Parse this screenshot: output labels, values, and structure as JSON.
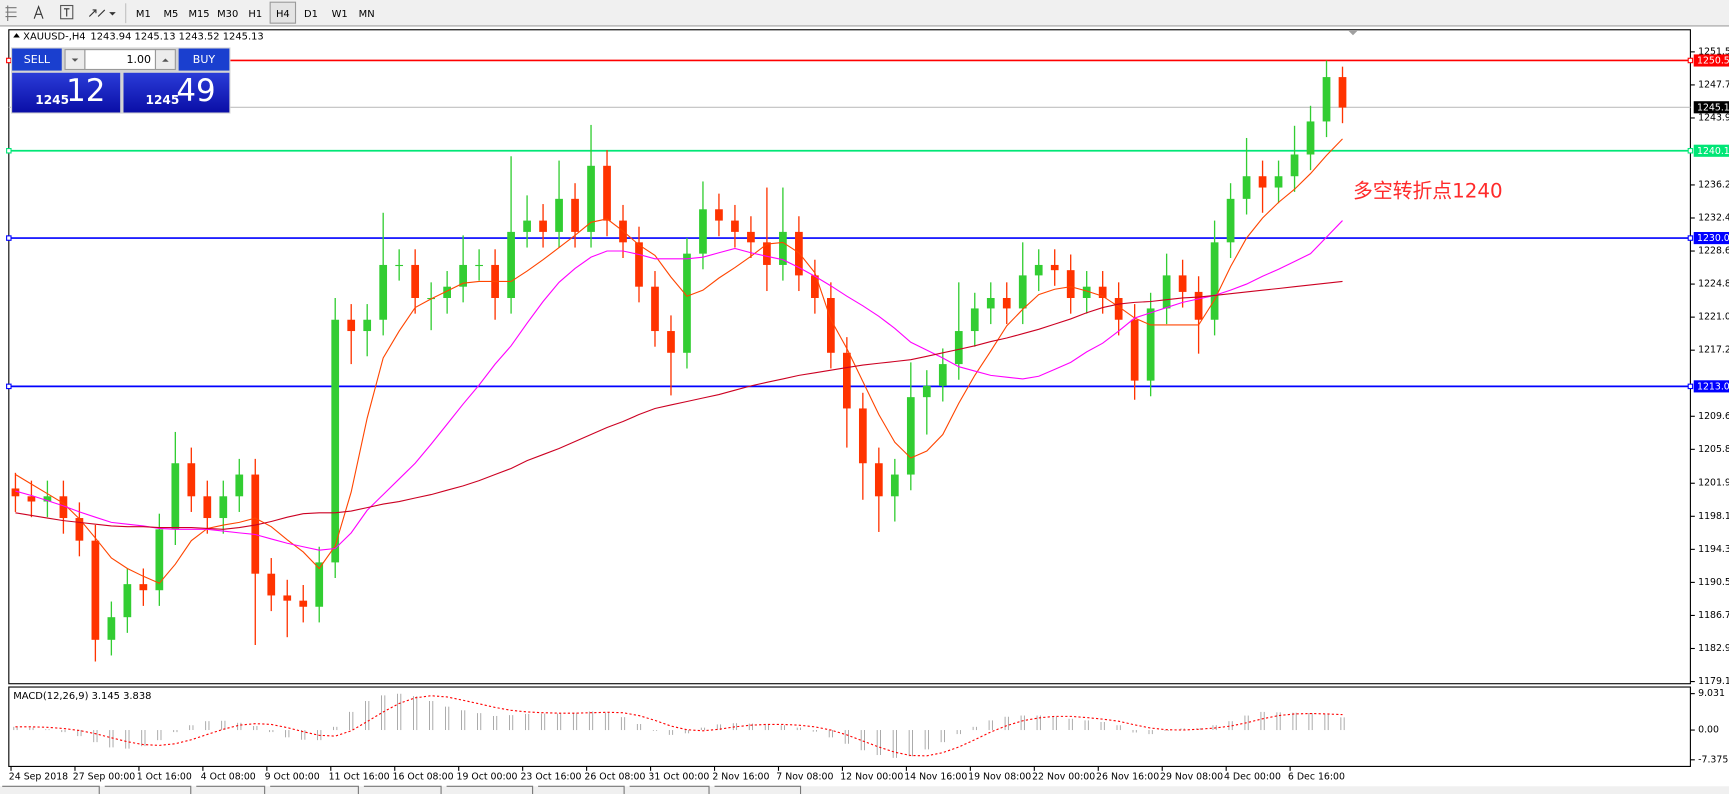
{
  "toolbar": {
    "timeframes": [
      "M1",
      "M5",
      "M15",
      "M30",
      "H1",
      "H4",
      "D1",
      "W1",
      "MN"
    ],
    "active": "H4"
  },
  "trade_panel": {
    "sell": "SELL",
    "buy": "BUY",
    "lots": "1.00",
    "bid_big": "1245",
    "bid_small": "12",
    "ask_big": "1245",
    "ask_small": "49"
  },
  "chart_data": {
    "type": "candlestick",
    "title": "XAUUSD-,H4",
    "subtitle": "1243.94 1245.13 1243.52 1245.13",
    "annotation": "多空转折点1240",
    "up_color": "#32cd32",
    "down_color": "#ff3300",
    "ylim": [
      1178.85,
      1254.04
    ],
    "yticks": [
      {
        "value": 1251.5,
        "label": "1251.50"
      },
      {
        "value": 1247.7,
        "label": "1247.70"
      },
      {
        "value": 1243.9,
        "label": "1243.90"
      },
      {
        "value": 1236.2,
        "label": "1236.20"
      },
      {
        "value": 1232.4,
        "label": "1232.40"
      },
      {
        "value": 1228.6,
        "label": "1228.60"
      },
      {
        "value": 1224.8,
        "label": "1224.80"
      },
      {
        "value": 1221.0,
        "label": "1221.00"
      },
      {
        "value": 1217.2,
        "label": "1217.20"
      },
      {
        "value": 1209.6,
        "label": "1209.60"
      },
      {
        "value": 1205.8,
        "label": "1205.80"
      },
      {
        "value": 1201.9,
        "label": "1201.90"
      },
      {
        "value": 1198.1,
        "label": "1198.10"
      },
      {
        "value": 1194.3,
        "label": "1194.30"
      },
      {
        "value": 1190.5,
        "label": "1190.50"
      },
      {
        "value": 1186.7,
        "label": "1186.70"
      },
      {
        "value": 1182.9,
        "label": "1182.90"
      },
      {
        "value": 1179.1,
        "label": "1179.10"
      }
    ],
    "hlines": [
      {
        "value": 1250.51,
        "color": "#ff0000"
      },
      {
        "value": 1245.13,
        "color": "#000000"
      },
      {
        "value": 1240.13,
        "color": "#00e676"
      },
      {
        "value": 1230.09,
        "color": "#0000ff"
      },
      {
        "value": 1213.04,
        "color": "#0000ff"
      }
    ],
    "x_labels": [
      "24 Sep 2018",
      "27 Sep 00:00",
      "1 Oct 16:00",
      "4 Oct 08:00",
      "9 Oct 00:00",
      "11 Oct 16:00",
      "16 Oct 08:00",
      "19 Oct 00:00",
      "23 Oct 16:00",
      "26 Oct 08:00",
      "31 Oct 00:00",
      "2 Nov 16:00",
      "7 Nov 08:00",
      "12 Nov 00:00",
      "14 Nov 16:00",
      "19 Nov 08:00",
      "22 Nov 00:00",
      "26 Nov 16:00",
      "29 Nov 08:00",
      "4 Dec 00:00",
      "6 Dec 16:00"
    ],
    "open": [
      1201.3,
      1200.4,
      1199.8,
      1200.4,
      1197.9,
      1195.3,
      1183.9,
      1186.5,
      1190.3,
      1189.6,
      1196.6,
      1204.2,
      1200.4,
      1197.9,
      1200.4,
      1202.9,
      1191.5,
      1189.0,
      1188.4,
      1187.7,
      1192.8,
      1220.7,
      1219.4,
      1220.7,
      1227.0,
      1227.0,
      1223.2,
      1223.2,
      1224.5,
      1227.0,
      1227.0,
      1223.2,
      1230.8,
      1232.1,
      1230.8,
      1234.6,
      1230.8,
      1238.4,
      1232.1,
      1229.6,
      1224.5,
      1219.4,
      1216.9,
      1228.3,
      1233.4,
      1232.1,
      1230.8,
      1229.6,
      1227.0,
      1230.8,
      1225.8,
      1223.2,
      1216.9,
      1210.5,
      1204.2,
      1200.4,
      1202.9,
      1211.8,
      1213.1,
      1215.6,
      1219.4,
      1222.0,
      1223.2,
      1222.0,
      1225.8,
      1227.0,
      1226.4,
      1223.2,
      1224.5,
      1223.2,
      1220.7,
      1213.7,
      1222.0,
      1225.8,
      1223.9,
      1220.7,
      1229.6,
      1234.6,
      1237.2,
      1235.9,
      1237.2,
      1239.7,
      1243.5,
      1248.6
    ],
    "high": [
      1203.1,
      1202.2,
      1202.2,
      1202.2,
      1199.7,
      1197.1,
      1188.3,
      1192.1,
      1192.1,
      1198.4,
      1207.8,
      1206.0,
      1202.2,
      1202.2,
      1204.7,
      1204.7,
      1193.3,
      1190.8,
      1190.2,
      1194.6,
      1223.2,
      1222.5,
      1222.5,
      1233.0,
      1228.8,
      1228.8,
      1225.0,
      1226.3,
      1230.4,
      1228.8,
      1228.8,
      1239.5,
      1235.0,
      1234.0,
      1239.0,
      1236.4,
      1243.1,
      1240.2,
      1233.9,
      1231.4,
      1226.3,
      1221.2,
      1230.1,
      1236.6,
      1235.2,
      1233.9,
      1232.6,
      1235.9,
      1235.9,
      1232.6,
      1227.6,
      1225.0,
      1218.7,
      1212.3,
      1206.0,
      1204.7,
      1215.8,
      1214.9,
      1217.4,
      1225.0,
      1223.8,
      1225.0,
      1225.0,
      1229.6,
      1228.8,
      1228.8,
      1228.2,
      1226.3,
      1226.3,
      1225.0,
      1222.5,
      1223.8,
      1228.3,
      1227.6,
      1225.7,
      1232.1,
      1236.4,
      1241.6,
      1239.0,
      1239.0,
      1243.0,
      1245.3,
      1250.5,
      1249.8
    ],
    "low": [
      1198.6,
      1198.0,
      1198.0,
      1196.1,
      1193.5,
      1181.4,
      1182.1,
      1184.7,
      1187.8,
      1187.8,
      1194.8,
      1198.6,
      1196.1,
      1196.1,
      1198.6,
      1183.3,
      1187.2,
      1184.2,
      1185.9,
      1185.9,
      1191.0,
      1215.6,
      1216.5,
      1218.9,
      1225.2,
      1221.4,
      1219.5,
      1221.4,
      1222.7,
      1225.2,
      1220.7,
      1221.4,
      1229.0,
      1229.0,
      1229.0,
      1229.0,
      1229.0,
      1230.3,
      1227.8,
      1222.7,
      1217.6,
      1212.0,
      1215.1,
      1226.5,
      1230.3,
      1229.0,
      1227.8,
      1224.0,
      1225.2,
      1224.0,
      1221.4,
      1215.1,
      1206.0,
      1200.0,
      1196.3,
      1197.5,
      1201.1,
      1207.5,
      1211.3,
      1213.8,
      1217.6,
      1220.2,
      1220.2,
      1220.2,
      1224.0,
      1224.6,
      1221.4,
      1221.4,
      1221.4,
      1218.9,
      1211.5,
      1211.9,
      1220.2,
      1222.1,
      1216.8,
      1218.9,
      1227.8,
      1232.8,
      1233.0,
      1234.1,
      1235.4,
      1237.9,
      1241.7,
      1243.3
    ],
    "close": [
      1200.4,
      1199.8,
      1200.4,
      1197.9,
      1195.3,
      1183.9,
      1186.5,
      1190.3,
      1189.6,
      1196.6,
      1204.2,
      1200.4,
      1197.9,
      1200.4,
      1202.9,
      1191.5,
      1189.0,
      1188.4,
      1187.7,
      1192.8,
      1220.7,
      1219.4,
      1220.7,
      1227.0,
      1227.0,
      1223.2,
      1223.2,
      1224.5,
      1227.0,
      1227.0,
      1223.2,
      1230.8,
      1232.1,
      1230.8,
      1234.6,
      1230.8,
      1238.4,
      1232.1,
      1229.6,
      1224.5,
      1219.4,
      1216.9,
      1228.3,
      1233.4,
      1232.1,
      1230.8,
      1229.6,
      1227.0,
      1230.8,
      1225.8,
      1223.2,
      1216.9,
      1210.5,
      1204.2,
      1200.4,
      1202.9,
      1211.8,
      1213.1,
      1215.6,
      1219.4,
      1222.0,
      1223.2,
      1222.0,
      1225.8,
      1227.0,
      1226.4,
      1223.2,
      1224.5,
      1223.2,
      1220.7,
      1213.7,
      1222.0,
      1225.8,
      1223.9,
      1220.7,
      1229.6,
      1234.6,
      1237.2,
      1235.9,
      1237.2,
      1239.7,
      1243.5,
      1248.6,
      1245.1
    ],
    "lines": [
      {
        "color": "#ff4500",
        "values": [
          1202.9,
          1201.8,
          1200.7,
          1199.6,
          1197.8,
          1195.6,
          1193.3,
          1192.1,
          1191.2,
          1190.4,
          1192.6,
          1195.3,
          1196.7,
          1197.1,
          1197.4,
          1197.9,
          1196.9,
          1195.4,
          1194.0,
          1192.1,
          1194.7,
          1200.9,
          1209.4,
          1216.3,
          1219.4,
          1222.1,
          1223.1,
          1224.0,
          1224.9,
          1225.1,
          1225.1,
          1225.1,
          1226.3,
          1227.6,
          1229.0,
          1230.4,
          1231.9,
          1232.3,
          1230.9,
          1229.3,
          1228.1,
          1225.6,
          1223.4,
          1224.1,
          1225.5,
          1226.7,
          1228.0,
          1229.4,
          1229.6,
          1228.4,
          1226.1,
          1220.7,
          1217.4,
          1213.6,
          1209.8,
          1206.6,
          1204.8,
          1205.6,
          1207.5,
          1211.1,
          1214.3,
          1217.1,
          1220.0,
          1221.9,
          1223.6,
          1224.2,
          1224.5,
          1224.0,
          1223.4,
          1222.2,
          1220.9,
          1220.1,
          1220.1,
          1220.1,
          1220.1,
          1223.0,
          1226.8,
          1230.1,
          1232.4,
          1234.2,
          1235.7,
          1237.5,
          1239.6,
          1241.5
        ]
      },
      {
        "color": "#ff00ff",
        "values": [
          1201.0,
          1200.5,
          1199.9,
          1199.3,
          1198.6,
          1198.0,
          1197.4,
          1197.2,
          1197.0,
          1196.7,
          1196.6,
          1196.6,
          1196.6,
          1196.4,
          1196.2,
          1196.0,
          1195.5,
          1195.0,
          1194.6,
          1194.2,
          1194.4,
          1196.2,
          1198.8,
          1200.6,
          1202.4,
          1204.2,
          1206.4,
          1208.7,
          1211.0,
          1213.2,
          1215.6,
          1217.7,
          1220.3,
          1222.8,
          1225.0,
          1226.6,
          1227.9,
          1228.6,
          1228.6,
          1228.2,
          1227.7,
          1227.7,
          1227.7,
          1227.9,
          1228.4,
          1228.9,
          1228.4,
          1228.0,
          1227.6,
          1226.7,
          1225.7,
          1224.6,
          1223.4,
          1222.3,
          1221.1,
          1219.7,
          1218.1,
          1217.2,
          1216.3,
          1215.3,
          1214.8,
          1214.3,
          1214.1,
          1213.9,
          1214.2,
          1215.0,
          1215.8,
          1217.0,
          1218.0,
          1219.4,
          1220.9,
          1221.5,
          1222.1,
          1222.7,
          1223.1,
          1223.5,
          1224.1,
          1224.8,
          1225.7,
          1226.5,
          1227.4,
          1228.3,
          1230.2,
          1232.1
        ]
      },
      {
        "color": "#cc0022",
        "values": [
          1198.5,
          1198.2,
          1197.9,
          1197.6,
          1197.4,
          1197.2,
          1197.0,
          1196.9,
          1196.9,
          1196.8,
          1196.8,
          1196.8,
          1196.7,
          1196.6,
          1196.8,
          1197.1,
          1197.5,
          1198.0,
          1198.4,
          1198.5,
          1198.5,
          1198.7,
          1199.1,
          1199.5,
          1199.8,
          1200.2,
          1200.6,
          1201.1,
          1201.6,
          1202.2,
          1202.9,
          1203.6,
          1204.5,
          1205.2,
          1205.9,
          1206.7,
          1207.5,
          1208.3,
          1209.0,
          1209.8,
          1210.5,
          1210.9,
          1211.3,
          1211.7,
          1212.1,
          1212.6,
          1213.1,
          1213.5,
          1213.9,
          1214.3,
          1214.6,
          1214.9,
          1215.2,
          1215.5,
          1215.7,
          1215.9,
          1216.1,
          1216.5,
          1216.9,
          1217.3,
          1217.7,
          1218.2,
          1218.6,
          1219.1,
          1219.6,
          1220.2,
          1220.8,
          1221.5,
          1222.1,
          1222.5,
          1222.7,
          1222.8,
          1223.0,
          1223.2,
          1223.3,
          1223.5,
          1223.7,
          1223.9,
          1224.1,
          1224.3,
          1224.5,
          1224.7,
          1224.9,
          1225.1
        ]
      }
    ],
    "macd": {
      "label": "MACD(12,26,9) 3.145 3.838",
      "ylim": [
        -9.02,
        10.67
      ],
      "yticks": [
        9.031,
        {
          "value": 0,
          "label": "0.00"
        },
        -7.375
      ],
      "hist_color": "#a0a0a0",
      "signal_color": "#ff0000",
      "histogram": [
        0.8,
        0.6,
        0.2,
        -0.5,
        -1.5,
        -3.0,
        -4.3,
        -4.6,
        -4.0,
        -2.5,
        -0.5,
        1.2,
        2.2,
        2.3,
        1.8,
        1.0,
        -0.5,
        -1.8,
        -2.4,
        -2.5,
        0.8,
        4.5,
        7.2,
        8.6,
        9.0,
        8.4,
        7.2,
        5.8,
        4.9,
        4.2,
        3.5,
        3.7,
        4.0,
        4.1,
        4.1,
        4.3,
        4.6,
        4.3,
        3.2,
        1.5,
        -0.2,
        -1.2,
        -0.8,
        0.6,
        1.4,
        1.7,
        1.6,
        1.4,
        1.2,
        0.6,
        -0.4,
        -1.8,
        -3.4,
        -5.0,
        -6.2,
        -6.9,
        -6.5,
        -4.8,
        -3.0,
        -1.0,
        0.8,
        2.4,
        3.3,
        3.6,
        3.6,
        3.3,
        2.8,
        2.4,
        2.0,
        1.2,
        -0.6,
        -1.0,
        -0.2,
        0.4,
        0.5,
        1.2,
        2.2,
        3.6,
        4.5,
        4.4,
        4.3,
        4.2,
        3.9,
        3.145
      ],
      "signal": [
        0.8,
        0.8,
        0.7,
        0.4,
        -0.1,
        -0.9,
        -1.9,
        -2.9,
        -3.6,
        -3.8,
        -3.4,
        -2.4,
        -1.1,
        0.2,
        1.2,
        1.6,
        1.4,
        0.6,
        -0.4,
        -1.3,
        -1.5,
        -0.2,
        2.1,
        4.5,
        6.6,
        8.0,
        8.5,
        8.2,
        7.4,
        6.5,
        5.6,
        4.9,
        4.5,
        4.3,
        4.2,
        4.2,
        4.3,
        4.4,
        4.3,
        3.6,
        2.4,
        1.0,
        0.1,
        -0.2,
        0.2,
        0.8,
        1.2,
        1.4,
        1.4,
        1.2,
        0.8,
        0.0,
        -1.2,
        -2.7,
        -4.2,
        -5.5,
        -6.3,
        -6.4,
        -5.6,
        -4.2,
        -2.4,
        -0.5,
        1.1,
        2.3,
        3.0,
        3.4,
        3.4,
        3.1,
        2.7,
        2.2,
        1.3,
        0.5,
        0.1,
        0.0,
        0.2,
        0.5,
        1.0,
        1.8,
        2.8,
        3.6,
        4.0,
        4.1,
        4.0,
        3.838
      ]
    }
  }
}
